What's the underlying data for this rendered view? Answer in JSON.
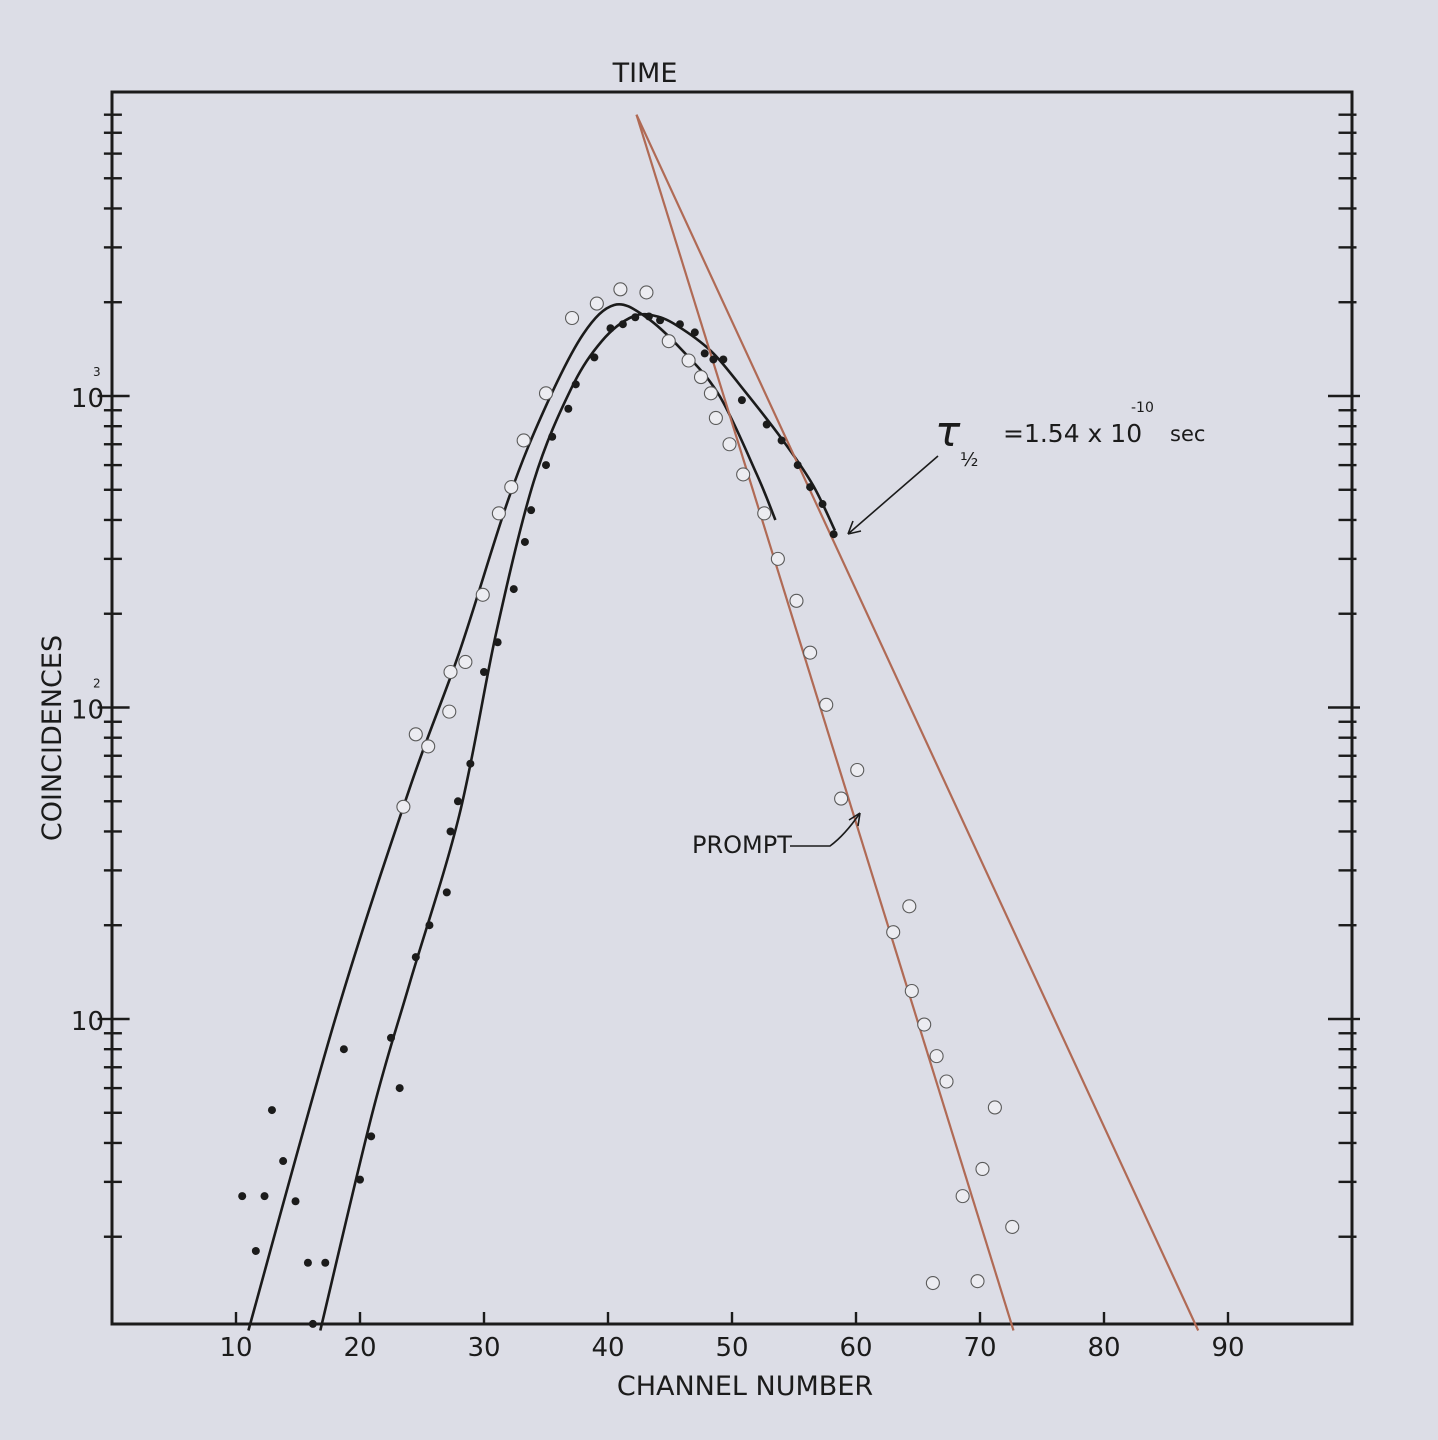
{
  "chart_data": {
    "type": "scatter",
    "xlabel": "CHANNEL NUMBER",
    "ylabel": "COINCIDENCES",
    "top_label": "TIME",
    "x_ticks": [
      "10",
      "20",
      "30",
      "40",
      "50",
      "60",
      "70",
      "80",
      "90"
    ],
    "x_tick_values": [
      10,
      20,
      30,
      40,
      50,
      60,
      70,
      80,
      90
    ],
    "y_ticks": [
      {
        "value": 10,
        "base": "10",
        "exp": ""
      },
      {
        "value": 100,
        "base": "10",
        "exp": "2"
      },
      {
        "value": 1000,
        "base": "10",
        "exp": "3"
      }
    ],
    "xlim": [
      0,
      100
    ],
    "ylim": [
      1,
      8000
    ],
    "yscale": "log",
    "grid": false,
    "annotations": {
      "tau_symbol": "τ",
      "tau_sub": "½",
      "tau_value": "=1.54 x 10",
      "tau_exp": "-10",
      "tau_unit": "sec",
      "prompt": "PROMPT"
    },
    "series": [
      {
        "marker": "open-circle",
        "points": [
          [
            23.5,
            48
          ],
          [
            24.5,
            82
          ],
          [
            25.5,
            75
          ],
          [
            27.2,
            97
          ],
          [
            27.3,
            130
          ],
          [
            28.5,
            140
          ],
          [
            29.9,
            230
          ],
          [
            31.2,
            420
          ],
          [
            32.2,
            510
          ],
          [
            33.2,
            720
          ],
          [
            35,
            1020
          ],
          [
            37.1,
            1780
          ],
          [
            39.1,
            1980
          ],
          [
            41,
            2200
          ],
          [
            43.1,
            2150
          ],
          [
            44.9,
            1500
          ],
          [
            46.5,
            1300
          ],
          [
            47.5,
            1150
          ],
          [
            48.3,
            1020
          ],
          [
            48.7,
            850
          ],
          [
            49.8,
            700
          ],
          [
            50.9,
            560
          ],
          [
            52.6,
            420
          ],
          [
            53.7,
            300
          ],
          [
            55.2,
            220
          ],
          [
            56.3,
            150
          ],
          [
            57.6,
            102
          ],
          [
            60.1,
            63
          ],
          [
            58.8,
            51
          ],
          [
            64.3,
            23
          ],
          [
            63,
            19
          ],
          [
            64.5,
            12.3
          ],
          [
            65.5,
            9.6
          ],
          [
            66.5,
            7.6
          ],
          [
            67.3,
            6.3
          ],
          [
            71.2,
            5.2
          ],
          [
            70.2,
            3.3
          ],
          [
            68.6,
            2.7
          ],
          [
            72.6,
            2.15
          ],
          [
            66.2,
            1.42
          ],
          [
            69.8,
            1.44
          ]
        ]
      },
      {
        "marker": "filled-dot",
        "points": [
          [
            10.5,
            2.7
          ],
          [
            11.6,
            1.8
          ],
          [
            12.3,
            2.7
          ],
          [
            12.9,
            5.1
          ],
          [
            13.8,
            3.5
          ],
          [
            14.8,
            2.6
          ],
          [
            15.8,
            1.65
          ],
          [
            17.2,
            1.65
          ],
          [
            16.2,
            1.05
          ],
          [
            18.7,
            8.0
          ],
          [
            20,
            3.05
          ],
          [
            20.9,
            4.2
          ],
          [
            22.5,
            8.7
          ],
          [
            23.2,
            6.0
          ],
          [
            24.5,
            15.8
          ],
          [
            25.6,
            20
          ],
          [
            27,
            25.5
          ],
          [
            27.3,
            40
          ],
          [
            27.9,
            50
          ],
          [
            28.9,
            66
          ],
          [
            30,
            130
          ],
          [
            31.1,
            162
          ],
          [
            32.4,
            240
          ],
          [
            33.3,
            340
          ],
          [
            33.8,
            430
          ],
          [
            35,
            600
          ],
          [
            35.5,
            740
          ],
          [
            36.8,
            910
          ],
          [
            37.4,
            1090
          ],
          [
            38.9,
            1330
          ],
          [
            40.2,
            1650
          ],
          [
            41.2,
            1700
          ],
          [
            42.2,
            1790
          ],
          [
            43.3,
            1800
          ],
          [
            44.2,
            1750
          ],
          [
            45.8,
            1700
          ],
          [
            47,
            1600
          ],
          [
            47.8,
            1370
          ],
          [
            48.5,
            1310
          ],
          [
            49.3,
            1310
          ],
          [
            50.8,
            970
          ],
          [
            52.8,
            810
          ],
          [
            54,
            720
          ],
          [
            55.3,
            600
          ],
          [
            56.3,
            510
          ],
          [
            57.3,
            450
          ],
          [
            58.2,
            360
          ]
        ]
      }
    ],
    "curves": [
      {
        "style": "fit-open",
        "points": [
          [
            11,
            1
          ],
          [
            18,
            10
          ],
          [
            24,
            55
          ],
          [
            28,
            150
          ],
          [
            32,
            470
          ],
          [
            35,
            930
          ],
          [
            38,
            1580
          ],
          [
            40.5,
            1960
          ],
          [
            43,
            1800
          ],
          [
            46,
            1400
          ],
          [
            49,
            1000
          ],
          [
            52,
            560
          ],
          [
            53.5,
            400
          ]
        ]
      },
      {
        "style": "fit-filled",
        "points": [
          [
            16.8,
            1
          ],
          [
            21,
            5
          ],
          [
            24,
            13
          ],
          [
            28,
            45
          ],
          [
            31,
            175
          ],
          [
            34,
            530
          ],
          [
            37,
            1050
          ],
          [
            39.5,
            1500
          ],
          [
            42,
            1800
          ],
          [
            44,
            1800
          ],
          [
            46,
            1640
          ],
          [
            48.5,
            1370
          ],
          [
            51,
            1040
          ],
          [
            54,
            730
          ],
          [
            56.5,
            520
          ],
          [
            58.3,
            370
          ]
        ]
      },
      {
        "style": "slope-prompt",
        "points": [
          [
            42.3,
            8000
          ],
          [
            72.7,
            1
          ]
        ]
      },
      {
        "style": "slope-time",
        "points": [
          [
            42.3,
            8000
          ],
          [
            87.6,
            1
          ]
        ]
      }
    ]
  }
}
